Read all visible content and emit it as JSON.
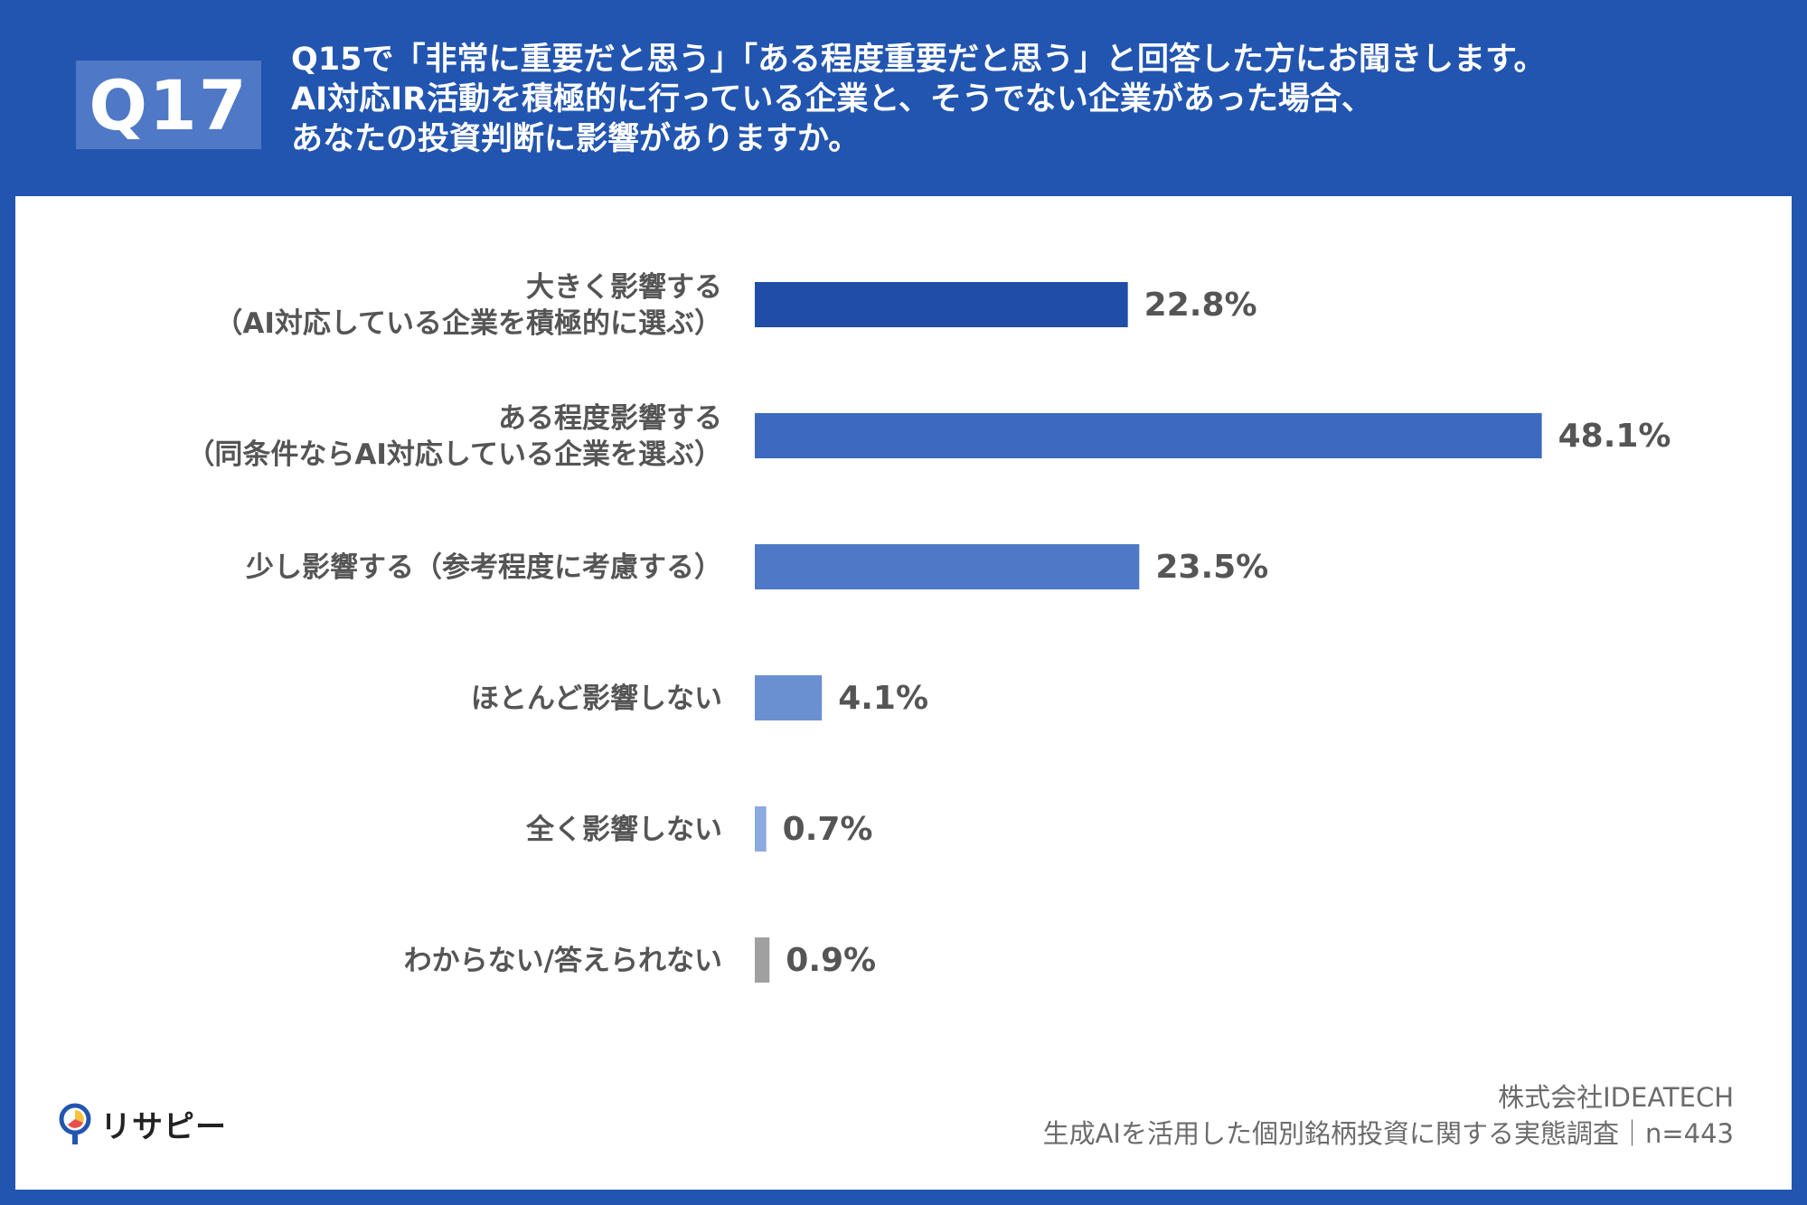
{
  "header": {
    "badge": "Q17",
    "question_lines": [
      "Q15で「非常に重要だと思う」「ある程度重要だと思う」と回答した方にお聞きします。",
      "AI対応IR活動を積極的に行っている企業と、そうでない企業があった場合、",
      "あなたの投資判断に影響がありますか。"
    ]
  },
  "chart_data": {
    "type": "bar",
    "orientation": "horizontal",
    "unit": "%",
    "xlim": [
      0,
      50
    ],
    "grid": false,
    "categories": [
      [
        "大きく影響する",
        "（AI対応している企業を積極的に選ぶ）"
      ],
      [
        "ある程度影響する",
        "（同条件ならAI対応している企業を選ぶ）"
      ],
      [
        "少し影響する（参考程度に考慮する）"
      ],
      [
        "ほとんど影響しない"
      ],
      [
        "全く影響しない"
      ],
      [
        "わからない/答えられない"
      ]
    ],
    "values": [
      22.8,
      48.1,
      23.5,
      4.1,
      0.7,
      0.9
    ],
    "value_labels": [
      "22.8%",
      "48.1%",
      "23.5%",
      "4.1%",
      "0.7%",
      "0.9%"
    ],
    "colors": [
      "#1f4da8",
      "#3d6ac0",
      "#4f79c6",
      "#6b90d2",
      "#8aaae0",
      "#a0a0a0"
    ]
  },
  "footer": {
    "company": "株式会社IDEATECH",
    "survey": "生成AIを活用した個別銘柄投資に関する実態調査｜n=443"
  },
  "logo": {
    "text": "リサピー",
    "colors": [
      "#2255b0",
      "#f5c33b",
      "#e94f4f"
    ]
  }
}
